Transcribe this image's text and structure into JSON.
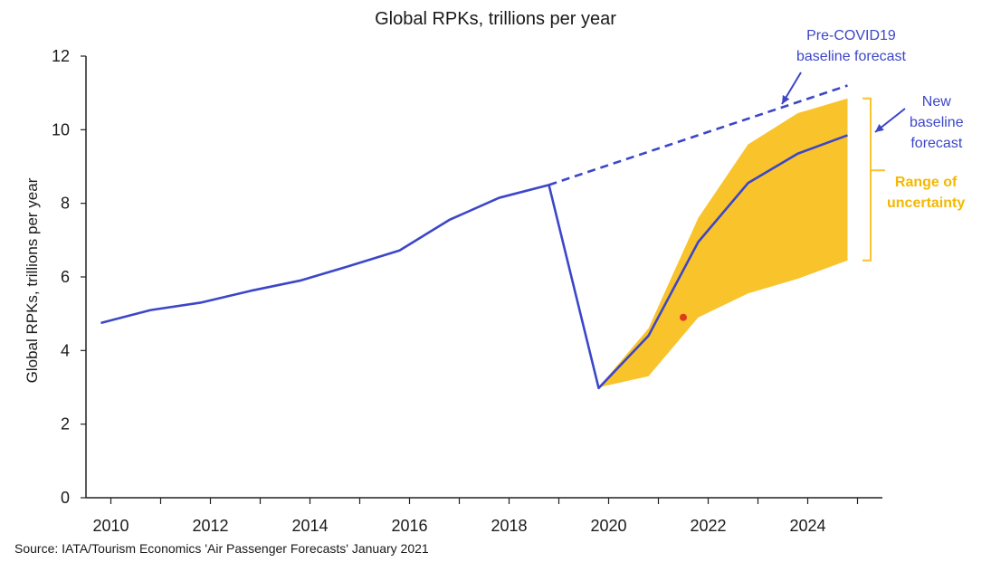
{
  "chart_data": {
    "type": "line",
    "title": "Global RPKs, trillions per year",
    "ylabel": "Global RPKs, trillions per year",
    "xlabel": "",
    "source": "Source: IATA/Tourism Economics 'Air Passenger Forecasts' January 2021",
    "xlim": [
      2009.5,
      2025.5
    ],
    "ylim": [
      0,
      12
    ],
    "x_ticks": [
      2010,
      2012,
      2014,
      2016,
      2018,
      2020,
      2022,
      2024
    ],
    "y_ticks": [
      0,
      2,
      4,
      6,
      8,
      10,
      12
    ],
    "grid": false,
    "series": [
      {
        "name": "",
        "color": "#3c46c8",
        "style": "solid",
        "x": [
          2009.8,
          2010.8,
          2011.8,
          2012.8,
          2013.8,
          2014.8,
          2015.8,
          2016.8,
          2017.8,
          2018.8,
          2019.8,
          2020.8,
          2021.8,
          2022.8,
          2023.8,
          2024.8
        ],
        "y": [
          4.75,
          5.1,
          5.3,
          5.62,
          5.9,
          6.3,
          6.72,
          7.55,
          8.15,
          8.5,
          2.98,
          4.4,
          6.95,
          8.55,
          9.35,
          9.85
        ]
      },
      {
        "name": "Pre-COVID19 baseline forecast",
        "color": "#3c46c8",
        "style": "dashed",
        "x": [
          2018.8,
          2024.8
        ],
        "y": [
          8.5,
          11.2
        ]
      }
    ],
    "band": {
      "name": "Range of uncertainty",
      "color": "#f9c32b",
      "x": [
        2019.8,
        2020.8,
        2021.8,
        2022.8,
        2023.8,
        2024.8
      ],
      "upper": [
        3.0,
        4.6,
        7.6,
        9.6,
        10.45,
        10.85
      ],
      "lower": [
        3.0,
        3.3,
        4.9,
        5.55,
        5.95,
        6.45
      ]
    },
    "marker": {
      "x": 2021.5,
      "y": 4.9,
      "color": "#e03a1e"
    },
    "annotations": {
      "pre_covid": [
        "Pre-COVID19",
        "baseline forecast"
      ],
      "new_baseline": [
        "New",
        "baseline",
        "forecast"
      ],
      "range": [
        "Range of",
        "uncertainty"
      ]
    }
  }
}
